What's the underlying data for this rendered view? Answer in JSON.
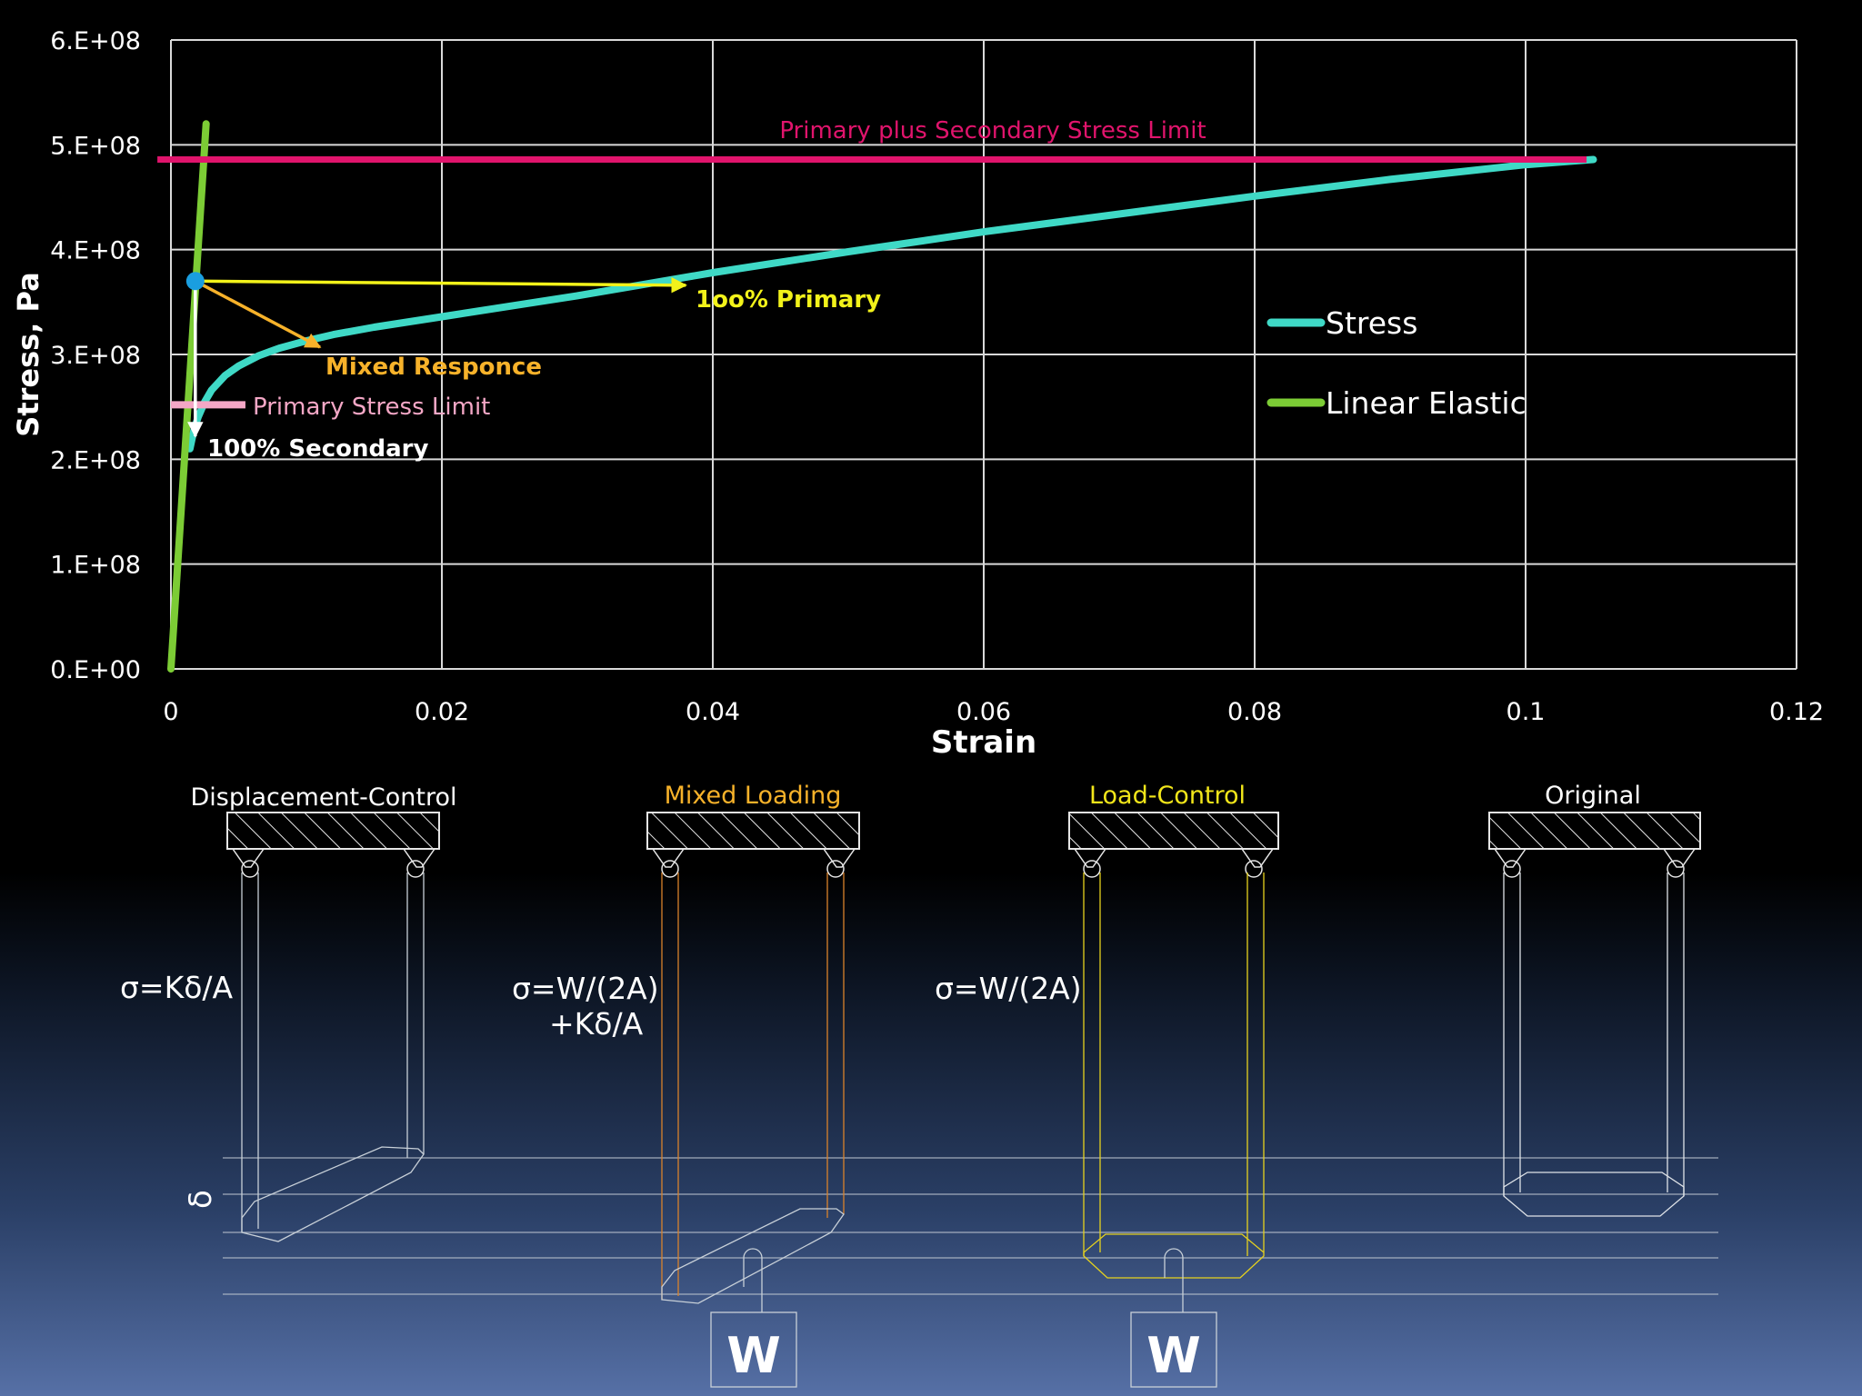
{
  "colors": {
    "background": "#000000",
    "grid": "#d9d9d9",
    "stress": "#3fd9c6",
    "linear_elastic": "#7ccc35",
    "primary_plus_secondary_limit": "#e0146c",
    "primary_limit": "#f4a7c6",
    "primary_arrow": "#f2f21a",
    "mixed_arrow": "#f7b22a",
    "secondary_arrow": "#ffffff",
    "point": "#1a9ee0",
    "text": "#ffffff",
    "mixed_label": "#f7b22a",
    "load_label": "#f2e61a",
    "disp_sketch": "#c8d0d8",
    "mixed_sketch": "#d9822b",
    "load_sketch": "#e6d21e",
    "orig_sketch": "#dfe3e8"
  },
  "chart_data": {
    "type": "line",
    "xlabel": "Strain",
    "ylabel": "Stress, Pa",
    "xlim": [
      0,
      0.12
    ],
    "ylim": [
      0,
      600000000
    ],
    "xticks": [
      0,
      0.02,
      0.04,
      0.06,
      0.08,
      0.1,
      0.12
    ],
    "xtick_labels": [
      "0",
      "0.02",
      "0.04",
      "0.06",
      "0.08",
      "0.1",
      "0.12"
    ],
    "yticks": [
      0,
      100000000,
      200000000,
      300000000,
      400000000,
      500000000,
      600000000
    ],
    "ytick_labels": [
      "0.E+00",
      "1.E+08",
      "2.E+08",
      "3.E+08",
      "4.E+08",
      "5.E+08",
      "6.E+08"
    ],
    "grid": true,
    "legend": "right",
    "series": [
      {
        "name": "Stress",
        "color": "#3fd9c6",
        "x": [
          0.0014,
          0.0017,
          0.002,
          0.0025,
          0.003,
          0.004,
          0.005,
          0.0065,
          0.008,
          0.01,
          0.012,
          0.015,
          0.02,
          0.025,
          0.03,
          0.04,
          0.05,
          0.06,
          0.07,
          0.08,
          0.09,
          0.1,
          0.105
        ],
        "y": [
          210000000,
          228000000,
          240000000,
          255000000,
          266000000,
          280000000,
          289000000,
          299000000,
          306000000,
          313000000,
          319000000,
          326000000,
          336000000,
          346000000,
          356000000,
          378000000,
          398000000,
          417000000,
          434000000,
          451000000,
          467000000,
          481000000,
          486000000
        ]
      },
      {
        "name": "Linear Elastic",
        "color": "#7ccc35",
        "x": [
          0,
          0.0026
        ],
        "y": [
          0,
          520000000
        ]
      }
    ],
    "reference_lines": [
      {
        "label": "Primary plus Secondary Stress Limit",
        "y": 486000000,
        "x": [
          -0.001,
          0.1045
        ]
      },
      {
        "label": "Primary Stress Limit",
        "y": 252000000,
        "x": [
          0,
          0.0055
        ]
      }
    ],
    "marker": {
      "x": 0.0018,
      "y": 370000000
    },
    "arrows": [
      {
        "label": "100% Primary",
        "to_x": 0.038,
        "to_y": 366000000
      },
      {
        "label": "Mixed Responce",
        "to_x": 0.011,
        "to_y": 307000000
      },
      {
        "label": "100% Secondary",
        "to_x": 0.0018,
        "to_y": 222000000
      }
    ]
  },
  "annotations": {
    "primary_plus_secondary": "Primary plus Secondary Stress Limit",
    "primary_100": "1oo% Primary",
    "mixed": "Mixed Responce",
    "primary_limit": "Primary Stress Limit",
    "secondary_100": "100% Secondary"
  },
  "legend": {
    "stress": "Stress",
    "linear": "Linear Elastic"
  },
  "diagrams": {
    "disp_title": "Displacement-Control",
    "mixed_title": "Mixed Loading",
    "load_title": "Load-Control",
    "orig_title": "Original",
    "disp_formula": "σ=Kδ/A",
    "mixed_formula_1": "σ=W/(2A)",
    "mixed_formula_2": "+Kδ/A",
    "load_formula": "σ=W/(2A)",
    "delta": "δ",
    "weight": "W"
  }
}
